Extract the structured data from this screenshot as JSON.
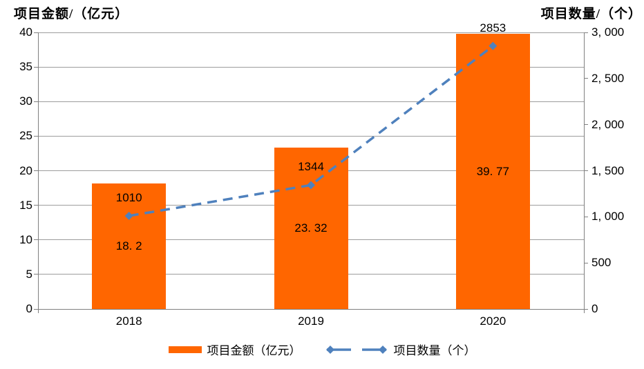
{
  "chart_data": {
    "type": "bar",
    "subtype": "combo-bar-line-dual-axis",
    "categories": [
      "2018",
      "2019",
      "2020"
    ],
    "series": [
      {
        "name": "项目金额（亿元）",
        "type": "bar",
        "axis": "left",
        "values": [
          18.2,
          23.32,
          39.77
        ],
        "labels": [
          "18. 2",
          "23. 32",
          "39. 77"
        ],
        "color": "#FF6600"
      },
      {
        "name": "项目数量（个）",
        "type": "line",
        "axis": "right",
        "dashed": true,
        "marker": "diamond",
        "values": [
          1010,
          1344,
          2853
        ],
        "labels": [
          "1010",
          "1344",
          "2853"
        ],
        "color": "#4F81BD"
      }
    ],
    "left_axis": {
      "title": "项目金额/（亿元）",
      "min": 0,
      "max": 40,
      "step": 5,
      "tick_labels": [
        "0",
        "5",
        "10",
        "15",
        "20",
        "25",
        "30",
        "35",
        "40"
      ]
    },
    "right_axis": {
      "title": "项目数量/（个）",
      "min": 0,
      "max": 3000,
      "step": 500,
      "tick_labels": [
        "0",
        "500",
        "1, 000",
        "1, 500",
        "2, 000",
        "2, 500",
        "3, 000"
      ]
    },
    "grid": true,
    "legend_position": "bottom"
  },
  "colors": {
    "bar": "#FF6600",
    "line": "#4F81BD",
    "gridline": "#9c9c9c",
    "axis": "#7f7f7f",
    "text": "#000000",
    "background": "#ffffff"
  }
}
